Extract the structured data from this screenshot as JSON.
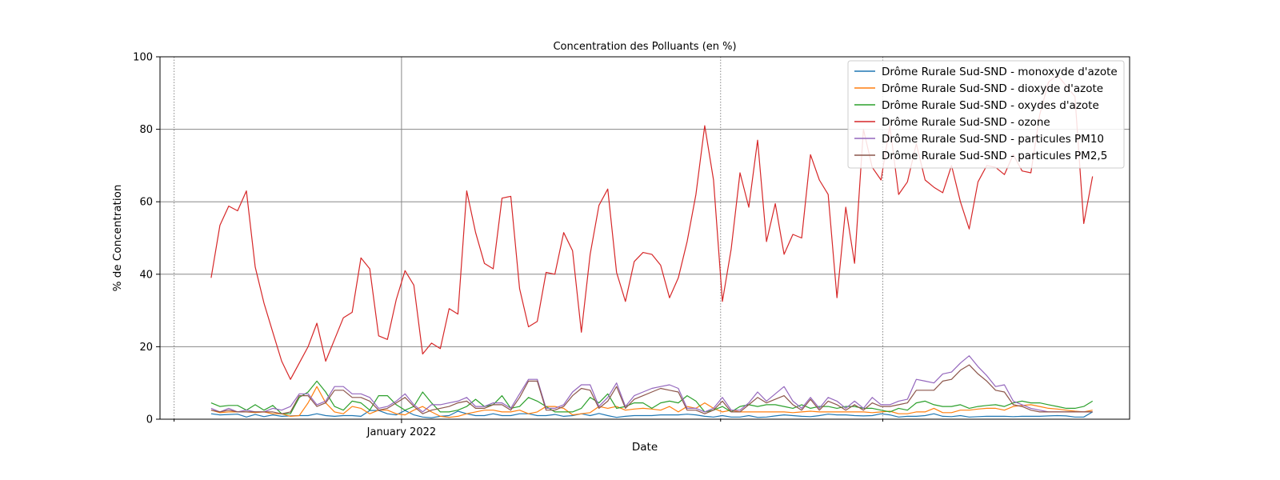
{
  "chart_data": {
    "type": "line",
    "title": "Concentration des Polluants (en %)",
    "xlabel": "Date",
    "ylabel": "% de Concentration",
    "ylim": [
      0,
      100
    ],
    "yticks": [
      0,
      20,
      40,
      60,
      80,
      100
    ],
    "x_tick_labels": [
      {
        "date": "2022-01-01",
        "label": "January 2022"
      }
    ],
    "grid": true,
    "legend_position": "top-right",
    "x": [
      "2021-09-15",
      "2021-09-20",
      "2021-09-25",
      "2021-09-30",
      "2021-10-05",
      "2021-10-10",
      "2021-10-15",
      "2021-10-20",
      "2021-10-25",
      "2021-10-30",
      "2021-11-04",
      "2021-11-09",
      "2021-11-14",
      "2021-11-19",
      "2021-11-24",
      "2021-11-29",
      "2021-12-04",
      "2021-12-09",
      "2021-12-14",
      "2021-12-19",
      "2021-12-24",
      "2021-12-29",
      "2022-01-03",
      "2022-01-08",
      "2022-01-13",
      "2022-01-18",
      "2022-01-23",
      "2022-01-28",
      "2022-02-02",
      "2022-02-07",
      "2022-02-12",
      "2022-02-17",
      "2022-02-22",
      "2022-02-27",
      "2022-03-04",
      "2022-03-09",
      "2022-03-14",
      "2022-03-19",
      "2022-03-24",
      "2022-03-29",
      "2022-04-03",
      "2022-04-08",
      "2022-04-13",
      "2022-04-18",
      "2022-04-23",
      "2022-04-28",
      "2022-05-03",
      "2022-05-08",
      "2022-05-13",
      "2022-05-18",
      "2022-05-23",
      "2022-05-28",
      "2022-06-02",
      "2022-06-07",
      "2022-06-12",
      "2022-06-17",
      "2022-06-22",
      "2022-06-27",
      "2022-07-02",
      "2022-07-07",
      "2022-07-12",
      "2022-07-17",
      "2022-07-22",
      "2022-07-27",
      "2022-08-01",
      "2022-08-06",
      "2022-08-11",
      "2022-08-16",
      "2022-08-21",
      "2022-08-26",
      "2022-08-31",
      "2022-09-05",
      "2022-09-10",
      "2022-09-15",
      "2022-09-20",
      "2022-09-25",
      "2022-09-30",
      "2022-10-05",
      "2022-10-10",
      "2022-10-15",
      "2022-10-20",
      "2022-10-25",
      "2022-10-30",
      "2022-11-04",
      "2022-11-09",
      "2022-11-14",
      "2022-11-19",
      "2022-11-24",
      "2022-11-29",
      "2022-12-04",
      "2022-12-09",
      "2022-12-14",
      "2022-12-19",
      "2022-12-24",
      "2022-12-29",
      "2023-01-03",
      "2023-01-08",
      "2023-01-13",
      "2023-01-18",
      "2023-01-23",
      "2023-01-28"
    ],
    "series": [
      {
        "name": "Drôme Rurale Sud-SND - monoxyde d'azote",
        "color": "#1f77b4",
        "values": [
          1.5,
          1.2,
          1.3,
          1.4,
          0.6,
          1.3,
          0.7,
          1.2,
          0.8,
          0.9,
          1.0,
          1.0,
          1.5,
          1.0,
          0.8,
          1.0,
          1.0,
          0.8,
          2.4,
          2.4,
          1.5,
          1.2,
          2.4,
          1.2,
          0.6,
          0.4,
          0.8,
          1.0,
          2.2,
          1.5,
          1.0,
          1.0,
          1.5,
          1.0,
          1.0,
          1.5,
          1.5,
          1.0,
          1.0,
          1.3,
          0.8,
          1.0,
          1.5,
          1.0,
          1.6,
          1.0,
          0.5,
          0.8,
          1.0,
          1.0,
          1.0,
          1.2,
          1.2,
          1.2,
          1.4,
          1.2,
          0.8,
          0.6,
          1.0,
          0.6,
          0.6,
          1.0,
          0.5,
          0.6,
          0.9,
          1.2,
          1.0,
          0.8,
          0.7,
          1.0,
          1.4,
          1.2,
          1.2,
          1.0,
          0.9,
          1.0,
          1.5,
          1.2,
          0.6,
          0.8,
          0.8,
          1.0,
          1.5,
          0.8,
          0.7,
          1.0,
          0.6,
          0.7,
          0.8,
          0.8,
          0.8,
          0.7,
          0.8,
          0.8,
          0.8,
          0.9,
          1.0,
          0.9,
          0.6,
          0.6,
          2.0
        ]
      },
      {
        "name": "Drôme Rurale Sud-SND - dioxyde d'azote",
        "color": "#ff7f0e",
        "values": [
          2.5,
          1.8,
          2.0,
          2.0,
          2.0,
          1.8,
          2.0,
          1.5,
          1.5,
          0.8,
          1.0,
          4.5,
          9.0,
          4.5,
          2.0,
          1.5,
          3.5,
          3.0,
          1.5,
          2.5,
          2.5,
          1.5,
          1.2,
          2.5,
          3.5,
          2.0,
          0.8,
          0.5,
          0.8,
          1.5,
          2.0,
          2.5,
          2.5,
          2.0,
          2.0,
          2.5,
          1.5,
          2.0,
          3.5,
          3.5,
          3.0,
          1.2,
          1.5,
          1.8,
          3.5,
          3.0,
          3.5,
          2.5,
          2.8,
          3.0,
          2.8,
          2.5,
          3.5,
          2.0,
          3.5,
          3.0,
          4.5,
          3.0,
          2.0,
          2.5,
          2.0,
          2.0,
          2.0,
          2.0,
          2.0,
          2.0,
          1.8,
          2.0,
          2.2,
          2.0,
          2.0,
          2.0,
          2.0,
          2.0,
          2.0,
          1.8,
          2.0,
          2.2,
          1.5,
          1.5,
          2.0,
          2.0,
          3.0,
          1.8,
          1.8,
          2.5,
          2.5,
          2.8,
          3.0,
          3.0,
          2.5,
          3.5,
          3.8,
          4.0,
          3.5,
          3.0,
          2.8,
          2.5,
          2.2,
          2.0,
          2.5
        ]
      },
      {
        "name": "Drôme Rurale Sud-SND - oxydes d'azote",
        "color": "#2ca02c",
        "values": [
          4.5,
          3.5,
          3.8,
          3.8,
          2.5,
          4.0,
          2.5,
          3.8,
          1.5,
          1.5,
          6.0,
          7.5,
          10.5,
          7.5,
          3.5,
          2.5,
          5.0,
          4.5,
          2.5,
          6.5,
          6.5,
          4.0,
          2.5,
          3.5,
          7.5,
          4.5,
          2.0,
          2.0,
          2.5,
          3.5,
          5.5,
          3.5,
          4.0,
          6.5,
          3.0,
          3.5,
          6.0,
          5.0,
          3.5,
          2.0,
          2.0,
          2.0,
          3.0,
          6.0,
          4.5,
          7.0,
          3.0,
          3.5,
          4.5,
          4.5,
          3.0,
          4.5,
          5.0,
          4.5,
          6.5,
          5.0,
          2.0,
          2.5,
          3.5,
          2.0,
          3.5,
          4.0,
          3.5,
          4.0,
          4.0,
          3.5,
          3.0,
          4.0,
          3.0,
          3.5,
          3.5,
          3.0,
          3.5,
          3.5,
          3.0,
          3.0,
          2.5,
          2.0,
          3.0,
          2.5,
          4.5,
          5.0,
          4.0,
          3.5,
          3.5,
          4.0,
          3.0,
          3.5,
          3.8,
          4.0,
          3.5,
          4.5,
          5.0,
          4.5,
          4.5,
          4.0,
          3.5,
          3.0,
          3.0,
          3.5,
          5.0
        ]
      },
      {
        "name": "Drôme Rurale Sud-SND - ozone",
        "color": "#d62728",
        "values": [
          39.0,
          53.5,
          58.8,
          57.5,
          63.0,
          42.0,
          32.0,
          24.0,
          16.0,
          11.0,
          15.5,
          20.0,
          26.5,
          16.0,
          22.0,
          28.0,
          29.5,
          44.5,
          41.5,
          23.0,
          22.0,
          33.0,
          41.0,
          37.0,
          18.0,
          21.0,
          19.5,
          30.5,
          29.0,
          63.0,
          51.5,
          43.0,
          41.5,
          61.0,
          61.5,
          36.0,
          25.5,
          27.0,
          40.5,
          40.0,
          51.5,
          46.5,
          24.0,
          45.5,
          59.0,
          63.5,
          40.5,
          32.5,
          43.5,
          46.0,
          45.5,
          42.5,
          33.5,
          39.0,
          49.0,
          62.0,
          81.0,
          66.0,
          32.5,
          47.0,
          68.0,
          58.5,
          77.0,
          49.0,
          59.5,
          45.5,
          51.0,
          50.0,
          73.0,
          66.0,
          62.0,
          33.5,
          58.5,
          43.0,
          80.0,
          69.5,
          66.0,
          81.0,
          62.0,
          65.5,
          76.0,
          66.0,
          64.0,
          62.5,
          70.0,
          60.0,
          52.5,
          65.5,
          70.0,
          69.5,
          67.5,
          73.0,
          68.5,
          68.0,
          84.0,
          93.0,
          95.0,
          92.0,
          89.0,
          54.0,
          67.0
        ]
      },
      {
        "name": "Drôme Rurale Sud-SND - particules PM10",
        "color": "#9467bd",
        "values": [
          3.0,
          2.0,
          3.0,
          2.0,
          2.5,
          2.0,
          2.0,
          3.0,
          2.5,
          3.5,
          7.0,
          7.0,
          4.0,
          5.0,
          9.0,
          9.0,
          7.0,
          7.0,
          6.0,
          3.0,
          3.5,
          5.0,
          7.0,
          4.0,
          2.0,
          4.0,
          4.0,
          4.5,
          5.0,
          6.0,
          3.5,
          3.5,
          4.5,
          4.5,
          3.0,
          7.0,
          11.0,
          11.0,
          3.0,
          3.0,
          4.0,
          7.5,
          9.5,
          9.5,
          3.5,
          6.0,
          10.0,
          3.5,
          6.5,
          7.5,
          8.5,
          9.0,
          9.5,
          8.5,
          3.0,
          3.0,
          2.0,
          3.0,
          6.0,
          2.5,
          2.5,
          4.5,
          7.5,
          5.0,
          7.0,
          9.0,
          5.0,
          3.0,
          6.0,
          3.0,
          6.0,
          5.0,
          3.0,
          5.0,
          3.0,
          6.0,
          4.0,
          4.0,
          5.0,
          5.5,
          11.0,
          10.5,
          10.0,
          12.5,
          13.0,
          15.5,
          17.5,
          14.5,
          12.0,
          9.0,
          9.5,
          5.0,
          4.0,
          3.0,
          2.5,
          2.0,
          2.0,
          2.0,
          2.0,
          2.0,
          2.0
        ]
      },
      {
        "name": "Drôme Rurale Sud-SND - particules PM2,5",
        "color": "#8c564b",
        "values": [
          2.5,
          2.0,
          2.5,
          2.0,
          2.0,
          2.0,
          2.0,
          2.0,
          1.5,
          2.0,
          6.5,
          6.5,
          3.5,
          4.5,
          8.0,
          8.0,
          6.0,
          6.0,
          5.0,
          2.5,
          3.0,
          4.5,
          6.0,
          3.5,
          1.5,
          2.5,
          3.0,
          3.5,
          4.5,
          5.0,
          3.0,
          3.0,
          4.0,
          4.0,
          2.5,
          6.0,
          10.5,
          10.5,
          2.5,
          2.5,
          3.5,
          6.5,
          8.5,
          8.0,
          3.0,
          5.0,
          9.0,
          3.0,
          5.5,
          6.5,
          7.5,
          8.5,
          8.0,
          7.5,
          2.5,
          2.5,
          1.5,
          2.5,
          5.0,
          2.0,
          2.0,
          4.0,
          6.0,
          4.5,
          5.5,
          6.5,
          4.0,
          2.5,
          5.5,
          2.5,
          5.0,
          4.0,
          2.5,
          4.0,
          2.5,
          4.5,
          3.5,
          3.5,
          4.0,
          4.5,
          8.0,
          8.0,
          8.0,
          10.5,
          11.0,
          13.5,
          15.0,
          12.5,
          10.5,
          8.0,
          7.5,
          4.0,
          3.5,
          2.5,
          2.0,
          2.0,
          2.0,
          2.0,
          2.0,
          2.0,
          2.0
        ]
      }
    ]
  }
}
